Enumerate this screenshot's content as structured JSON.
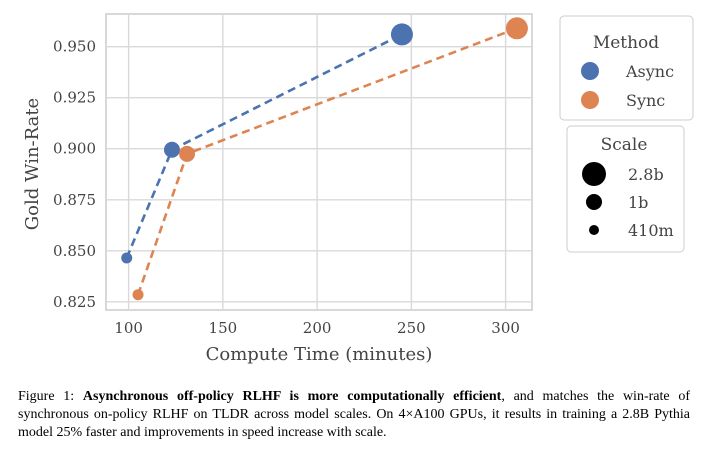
{
  "chart_data": {
    "type": "scatter",
    "xlabel": "Compute Time (minutes)",
    "ylabel": "Gold Win-Rate",
    "xlim": [
      88,
      314
    ],
    "ylim": [
      0.821,
      0.966
    ],
    "xticks": [
      100,
      150,
      200,
      250,
      300
    ],
    "yticks": [
      0.825,
      0.85,
      0.875,
      0.9,
      0.925,
      0.95
    ],
    "xtick_labels": [
      "100",
      "150",
      "200",
      "250",
      "300"
    ],
    "ytick_labels": [
      "0.825",
      "0.850",
      "0.875",
      "0.900",
      "0.925",
      "0.950"
    ],
    "grid": true,
    "legend_placement": "right, outside",
    "series": [
      {
        "name": "Async",
        "color": "#4c72b0",
        "points": [
          {
            "x": 99,
            "y": 0.8465,
            "scale": "410m"
          },
          {
            "x": 123,
            "y": 0.8995,
            "scale": "1b"
          },
          {
            "x": 245,
            "y": 0.956,
            "scale": "2.8b"
          }
        ]
      },
      {
        "name": "Sync",
        "color": "#dd8452",
        "points": [
          {
            "x": 105,
            "y": 0.8285,
            "scale": "410m"
          },
          {
            "x": 131,
            "y": 0.8975,
            "scale": "1b"
          },
          {
            "x": 306,
            "y": 0.959,
            "scale": "2.8b"
          }
        ]
      }
    ],
    "legend_method": {
      "title": "Method",
      "entries": [
        "Async",
        "Sync"
      ]
    },
    "legend_scale": {
      "title": "Scale",
      "entries": [
        "2.8b",
        "1b",
        "410m"
      ]
    }
  },
  "caption": {
    "label": "Figure 1:",
    "bold": "Asynchronous off-policy RLHF is more computationally efficient",
    "rest": ", and matches the win-rate of synchronous on-policy RLHF on TLDR across model scales. On 4×A100 GPUs, it results in training a 2.8B Pythia model 25% faster and improvements in speed increase with scale."
  }
}
